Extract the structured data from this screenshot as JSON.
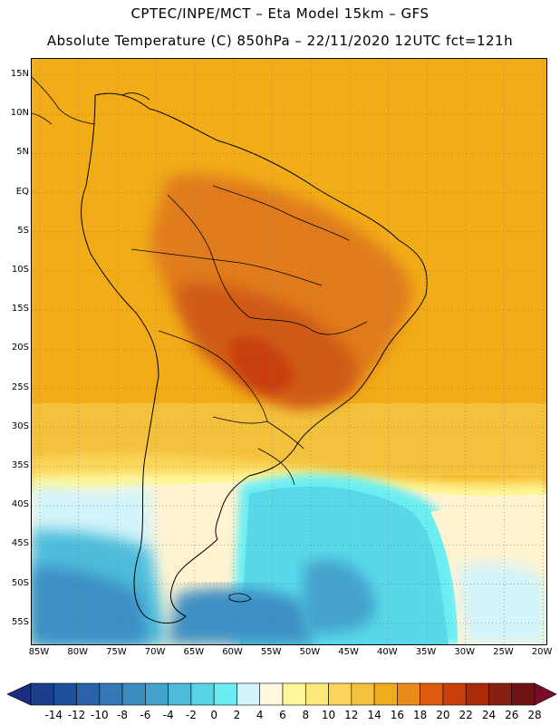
{
  "header": {
    "title_line1": "CPTEC/INPE/MCT –  Eta Model 15km – GFS",
    "title_line2": "Absolute Temperature (C) 850hPa – 22/11/2020 12UTC fct=121h"
  },
  "axes": {
    "lat_labels": [
      "15N",
      "10N",
      "5N",
      "EQ",
      "5S",
      "10S",
      "15S",
      "20S",
      "25S",
      "30S",
      "35S",
      "40S",
      "45S",
      "50S",
      "55S"
    ],
    "lon_labels": [
      "85W",
      "80W",
      "75W",
      "70W",
      "65W",
      "60W",
      "55W",
      "50W",
      "45W",
      "40W",
      "35W",
      "30W",
      "25W",
      "20W"
    ]
  },
  "colorbar": {
    "levels": [
      "-14",
      "-12",
      "-10",
      "-8",
      "-6",
      "-4",
      "-2",
      "0",
      "2",
      "4",
      "6",
      "8",
      "10",
      "12",
      "14",
      "16",
      "18",
      "20",
      "22",
      "24",
      "26",
      "28"
    ],
    "colors": [
      "#1c3f8c",
      "#1e4f9a",
      "#2a62a8",
      "#3576b4",
      "#3d8cc0",
      "#44a2cc",
      "#4dbcda",
      "#57d4e6",
      "#6aeef2",
      "#d2f4fb",
      "#fff8e0",
      "#fff79a",
      "#fde87a",
      "#fbd55a",
      "#f3c13c",
      "#f0ac1c",
      "#ea8a1a",
      "#dd5c10",
      "#c8400c",
      "#aa2a08",
      "#862010",
      "#6e1414"
    ],
    "low_end_color": "#1a2d80",
    "high_end_color": "#7a0c28"
  },
  "regions": {
    "northern_color": "#f2ac18",
    "inner_color": "#e07c1c",
    "core_color": "#cf5a18",
    "south_pale_color": "#fff3d0",
    "south_cyan_color": "#58d8e8",
    "deep_south_color": "#3c8fc4"
  }
}
